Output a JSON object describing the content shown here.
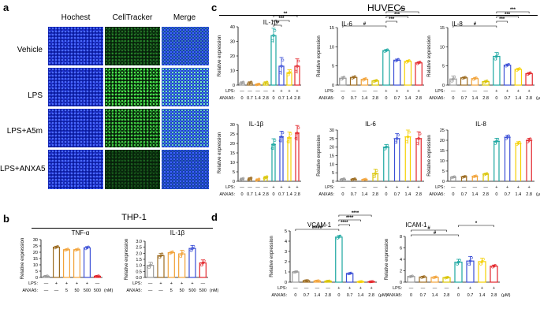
{
  "panels": {
    "a": "a",
    "b": "b",
    "c": "c",
    "d": "d"
  },
  "micro": {
    "columns": [
      "Hochest",
      "CellTracker",
      "Merge"
    ],
    "rows": [
      "Vehicle",
      "LPS",
      "LPS+A5m",
      "LPS+ANXA5"
    ]
  },
  "thp1": {
    "title": "THP-1"
  },
  "huvecs": {
    "title": "HUVECs"
  },
  "labels": {
    "ylabel": "Relative expression",
    "lps": "LPS:",
    "anxa5": "ANXA5:",
    "unit_um": "(μM)",
    "unit_nm": "(nM)"
  },
  "colors": {
    "gray": "#9a9a9a",
    "brown": "#9c6b20",
    "orange": "#f2a33a",
    "yellow": "#d9c400",
    "teal": "#1aa6a0",
    "blue": "#3a4ed6",
    "gold": "#f5d000",
    "red": "#e3262b"
  },
  "chart_data": [
    {
      "id": "b1",
      "type": "bar",
      "title": "TNF-α",
      "ylabel": "Relative expression",
      "ylim": [
        0,
        30
      ],
      "yticks": [
        0,
        5,
        10,
        15,
        20,
        25,
        30
      ],
      "lps": [
        "—",
        "+",
        "+",
        "+",
        "+",
        "—"
      ],
      "anxa5": [
        "—",
        "—",
        "5",
        "50",
        "500",
        "500"
      ],
      "unit": "(nM)",
      "values": [
        1,
        24,
        22,
        22,
        23.5,
        1
      ],
      "errors": [
        0.3,
        0.8,
        0.6,
        0.6,
        1.0,
        0.3
      ],
      "colors": [
        "#9a9a9a",
        "#9c6b20",
        "#f2a33a",
        "#f2a33a",
        "#3a4ed6",
        "#e3262b"
      ]
    },
    {
      "id": "b2",
      "type": "bar",
      "title": "IL-1β",
      "ylabel": "Relative expression",
      "ylim": [
        0,
        3.0
      ],
      "yticks": [
        0,
        0.5,
        1.0,
        1.5,
        2.0,
        2.5,
        3.0
      ],
      "lps": [
        "—",
        "+",
        "+",
        "+",
        "+",
        "—"
      ],
      "anxa5": [
        "—",
        "—",
        "5",
        "50",
        "500",
        "500"
      ],
      "unit": "(nM)",
      "values": [
        1.0,
        1.8,
        2.05,
        1.95,
        2.4,
        1.2
      ],
      "errors": [
        0.25,
        0.2,
        0.1,
        0.3,
        0.25,
        0.25
      ],
      "colors": [
        "#9a9a9a",
        "#9c6b20",
        "#f2a33a",
        "#f2a33a",
        "#3a4ed6",
        "#e3262b"
      ]
    },
    {
      "id": "c1",
      "type": "bar",
      "title": "IL-1β",
      "ylabel": "Relative expression",
      "ylim": [
        0,
        40
      ],
      "yticks": [
        0,
        10,
        20,
        30,
        40
      ],
      "lps": [
        "—",
        "—",
        "—",
        "—",
        "+",
        "+",
        "+",
        "+"
      ],
      "anxa5": [
        "0",
        "0.7",
        "1.4",
        "2.8",
        "0",
        "0.7",
        "1.4",
        "2.8"
      ],
      "unit": "",
      "values": [
        1.5,
        1.5,
        0.5,
        1.5,
        34,
        13,
        8.5,
        13
      ],
      "errors": [
        0.8,
        0.8,
        0.4,
        0.8,
        5,
        6,
        2,
        5
      ],
      "colors": [
        "#9a9a9a",
        "#9c6b20",
        "#f2a33a",
        "#d9c400",
        "#1aa6a0",
        "#3a4ed6",
        "#f5d000",
        "#e3262b"
      ],
      "sig": [
        {
          "from": 4,
          "to": 5,
          "text": "**"
        },
        {
          "from": 4,
          "to": 6,
          "text": "***"
        },
        {
          "from": 4,
          "to": 7,
          "text": "**"
        }
      ]
    },
    {
      "id": "c2",
      "type": "bar",
      "title": "IL-6",
      "ylabel": "Relative expression",
      "ylim": [
        0,
        15
      ],
      "yticks": [
        0,
        5,
        10,
        15
      ],
      "lps": [
        "—",
        "—",
        "—",
        "—",
        "+",
        "+",
        "+",
        "+"
      ],
      "anxa5": [
        "0",
        "0.7",
        "1.4",
        "2.8",
        "0",
        "0.7",
        "1.4",
        "2.8"
      ],
      "unit": "",
      "values": [
        1.8,
        2.0,
        1.5,
        1.1,
        9.0,
        6.5,
        6.2,
        5.8
      ],
      "errors": [
        0.4,
        0.3,
        0.3,
        0.2,
        0.3,
        0.3,
        0.3,
        0.3
      ],
      "colors": [
        "#9a9a9a",
        "#9c6b20",
        "#f2a33a",
        "#d9c400",
        "#1aa6a0",
        "#3a4ed6",
        "#f5d000",
        "#e3262b"
      ],
      "sig": [
        {
          "from": 0,
          "to": 4,
          "text": "#"
        },
        {
          "from": 4,
          "to": 5,
          "text": "***"
        },
        {
          "from": 4,
          "to": 6,
          "text": "***"
        },
        {
          "from": 4,
          "to": 7,
          "text": "***"
        }
      ]
    },
    {
      "id": "c3",
      "type": "bar",
      "title": "IL-8",
      "ylabel": "Relative expression",
      "ylim": [
        0,
        15
      ],
      "yticks": [
        0,
        5,
        10,
        15
      ],
      "lps": [
        "—",
        "—",
        "—",
        "—",
        "+",
        "+",
        "+",
        "+"
      ],
      "anxa5": [
        "0",
        "0.7",
        "1.4",
        "2.8",
        "0",
        "0.7",
        "1.4",
        "2.8"
      ],
      "unit": "(μM)",
      "values": [
        1.6,
        1.9,
        1.7,
        0.9,
        7.5,
        5.2,
        4.1,
        3.0
      ],
      "errors": [
        0.8,
        0.2,
        0.3,
        0.3,
        1.0,
        0.3,
        0.3,
        0.3
      ],
      "colors": [
        "#9a9a9a",
        "#9c6b20",
        "#f2a33a",
        "#d9c400",
        "#1aa6a0",
        "#3a4ed6",
        "#f5d000",
        "#e3262b"
      ],
      "sig": [
        {
          "from": 0,
          "to": 4,
          "text": "#"
        },
        {
          "from": 4,
          "to": 5,
          "text": "***"
        },
        {
          "from": 4,
          "to": 6,
          "text": "***"
        },
        {
          "from": 4,
          "to": 7,
          "text": "***"
        }
      ]
    },
    {
      "id": "c4",
      "type": "bar",
      "title": "IL-1β",
      "ylabel": "Relative expression",
      "ylim": [
        0,
        30
      ],
      "yticks": [
        0,
        5,
        10,
        15,
        20,
        25,
        30
      ],
      "lps": [
        "—",
        "—",
        "—",
        "—",
        "+",
        "+",
        "+",
        "+"
      ],
      "anxa5": [
        "0",
        "0.7",
        "1.4",
        "2.8",
        "0",
        "0.7",
        "1.4",
        "2.8"
      ],
      "unit": "",
      "values": [
        1.2,
        1.3,
        0.8,
        2.0,
        19.5,
        23.5,
        23,
        25.5
      ],
      "errors": [
        0.5,
        0.6,
        0.5,
        0.6,
        3,
        3,
        3,
        4
      ],
      "colors": [
        "#9a9a9a",
        "#9c6b20",
        "#f2a33a",
        "#d9c400",
        "#1aa6a0",
        "#3a4ed6",
        "#f5d000",
        "#e3262b"
      ]
    },
    {
      "id": "c5",
      "type": "bar",
      "title": "IL-6",
      "ylabel": "Relative expression",
      "ylim": [
        0,
        30
      ],
      "yticks": [
        0,
        5,
        10,
        15,
        20,
        25,
        30
      ],
      "lps": [
        "—",
        "—",
        "—",
        "—",
        "+",
        "+",
        "+",
        "+"
      ],
      "anxa5": [
        "0",
        "0.7",
        "1.4",
        "2.8",
        "0",
        "0.7",
        "1.4",
        "2.8"
      ],
      "unit": "",
      "values": [
        1.2,
        1.2,
        1.0,
        4.5,
        20,
        25,
        26,
        25
      ],
      "errors": [
        0.4,
        0.4,
        0.3,
        2.5,
        1.5,
        3,
        4,
        4
      ],
      "colors": [
        "#9a9a9a",
        "#9c6b20",
        "#f2a33a",
        "#d9c400",
        "#1aa6a0",
        "#3a4ed6",
        "#f5d000",
        "#e3262b"
      ]
    },
    {
      "id": "c6",
      "type": "bar",
      "title": "IL-8",
      "ylabel": "Relative expression",
      "ylim": [
        0,
        25
      ],
      "yticks": [
        0,
        5,
        10,
        15,
        20,
        25
      ],
      "lps": [
        "—",
        "—",
        "—",
        "—",
        "+",
        "+",
        "+",
        "+"
      ],
      "anxa5": [
        "0",
        "0.7",
        "1.4",
        "2.8",
        "0",
        "0.7",
        "1.4",
        "2.8"
      ],
      "unit": "(μM)",
      "values": [
        2.0,
        2.2,
        2.4,
        3.5,
        19.5,
        21.5,
        18.5,
        20
      ],
      "errors": [
        0.3,
        0.3,
        0.3,
        0.4,
        1.5,
        1.0,
        0.8,
        1.0
      ],
      "colors": [
        "#9a9a9a",
        "#9c6b20",
        "#f2a33a",
        "#d9c400",
        "#1aa6a0",
        "#3a4ed6",
        "#f5d000",
        "#e3262b"
      ]
    },
    {
      "id": "d1",
      "type": "bar",
      "title": "VCAM-1",
      "ylabel": "Relative expression",
      "ylim": [
        0,
        5
      ],
      "yticks": [
        0,
        1,
        2,
        3,
        4,
        5
      ],
      "lps": [
        "—",
        "—",
        "—",
        "—",
        "+",
        "+",
        "+",
        "+"
      ],
      "anxa5": [
        "0",
        "0.7",
        "1.4",
        "2.8",
        "0",
        "0.7",
        "1.4",
        "2.8"
      ],
      "unit": "(μM)",
      "values": [
        1.0,
        0.15,
        0.12,
        0.1,
        4.4,
        0.85,
        0.05,
        0.05
      ],
      "errors": [
        0.05,
        0.03,
        0.03,
        0.03,
        0.15,
        0.05,
        0.02,
        0.02
      ],
      "colors": [
        "#9a9a9a",
        "#9c6b20",
        "#f2a33a",
        "#d9c400",
        "#1aa6a0",
        "#3a4ed6",
        "#f5d000",
        "#e3262b"
      ],
      "sig": [
        {
          "from": 0,
          "to": 4,
          "text": "####"
        },
        {
          "from": 4,
          "to": 5,
          "text": "****"
        },
        {
          "from": 4,
          "to": 6,
          "text": "****"
        },
        {
          "from": 4,
          "to": 7,
          "text": "****"
        }
      ]
    },
    {
      "id": "d2",
      "type": "bar",
      "title": "ICAM-1",
      "ylabel": "Relative expression",
      "ylim": [
        0,
        8
      ],
      "yticks": [
        0,
        2,
        4,
        6,
        8
      ],
      "lps": [
        "—",
        "—",
        "—",
        "—",
        "+",
        "+",
        "+",
        "+"
      ],
      "anxa5": [
        "0",
        "0.7",
        "1.4",
        "2.8",
        "0",
        "0.7",
        "1.4",
        "2.8"
      ],
      "unit": "(μM)",
      "values": [
        1.0,
        0.9,
        0.85,
        0.8,
        3.5,
        3.7,
        3.6,
        2.8
      ],
      "errors": [
        0.1,
        0.1,
        0.1,
        0.1,
        0.5,
        0.8,
        0.6,
        0.2
      ],
      "colors": [
        "#9a9a9a",
        "#9c6b20",
        "#f2a33a",
        "#d9c400",
        "#1aa6a0",
        "#3a4ed6",
        "#f5d000",
        "#e3262b"
      ],
      "sig": [
        {
          "from": 0,
          "to": 4,
          "text": "#"
        },
        {
          "from": 0,
          "to": 3,
          "text": "#"
        },
        {
          "from": 4,
          "to": 7,
          "text": "*"
        }
      ]
    }
  ]
}
